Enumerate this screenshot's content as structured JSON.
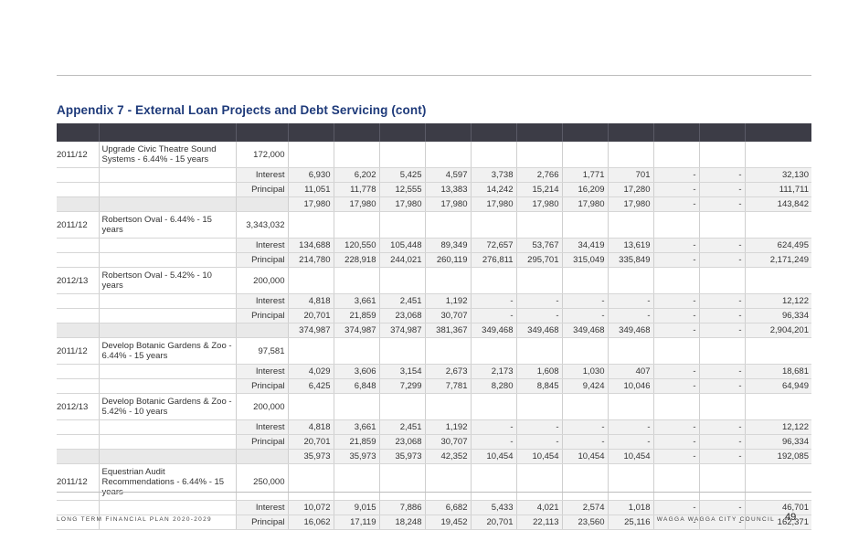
{
  "title": "Appendix 7 - External Loan Projects and Debt Servicing (cont)",
  "footer": {
    "left": "LONG TERM FINANCIAL PLAN 2020-2029",
    "right": "WAGGA WAGGA CITY COUNCIL",
    "page_number": "49"
  },
  "rows": [
    {
      "type": "loan",
      "year": "2011/12",
      "description": "Upgrade Civic Theatre Sound Systems - 6.44% - 15 years",
      "amount": "172,000"
    },
    {
      "type": "detail",
      "label": "Interest",
      "values": [
        "6,930",
        "6,202",
        "5,425",
        "4,597",
        "3,738",
        "2,766",
        "1,771",
        "701",
        "-",
        "-",
        "32,130"
      ]
    },
    {
      "type": "detail",
      "label": "Principal",
      "values": [
        "11,051",
        "11,778",
        "12,555",
        "13,383",
        "14,242",
        "15,214",
        "16,209",
        "17,280",
        "-",
        "-",
        "111,711"
      ]
    },
    {
      "type": "total",
      "values": [
        "17,980",
        "17,980",
        "17,980",
        "17,980",
        "17,980",
        "17,980",
        "17,980",
        "17,980",
        "-",
        "-",
        "143,842"
      ]
    },
    {
      "type": "loan",
      "year": "2011/12",
      "description": "Robertson Oval - 6.44% - 15 years",
      "amount": "3,343,032"
    },
    {
      "type": "detail",
      "label": "Interest",
      "values": [
        "134,688",
        "120,550",
        "105,448",
        "89,349",
        "72,657",
        "53,767",
        "34,419",
        "13,619",
        "-",
        "-",
        "624,495"
      ]
    },
    {
      "type": "detail",
      "label": "Principal",
      "values": [
        "214,780",
        "228,918",
        "244,021",
        "260,119",
        "276,811",
        "295,701",
        "315,049",
        "335,849",
        "-",
        "-",
        "2,171,249"
      ]
    },
    {
      "type": "loan",
      "year": "2012/13",
      "description": "Robertson Oval - 5.42% - 10 years",
      "amount": "200,000"
    },
    {
      "type": "detail",
      "label": "Interest",
      "values": [
        "4,818",
        "3,661",
        "2,451",
        "1,192",
        "-",
        "-",
        "-",
        "-",
        "-",
        "-",
        "12,122"
      ]
    },
    {
      "type": "detail",
      "label": "Principal",
      "values": [
        "20,701",
        "21,859",
        "23,068",
        "30,707",
        "-",
        "-",
        "-",
        "-",
        "-",
        "-",
        "96,334"
      ]
    },
    {
      "type": "total",
      "values": [
        "374,987",
        "374,987",
        "374,987",
        "381,367",
        "349,468",
        "349,468",
        "349,468",
        "349,468",
        "-",
        "-",
        "2,904,201"
      ]
    },
    {
      "type": "loan",
      "year": "2011/12",
      "description": "Develop Botanic Gardens & Zoo - 6.44% - 15 years",
      "amount": "97,581"
    },
    {
      "type": "detail",
      "label": "Interest",
      "values": [
        "4,029",
        "3,606",
        "3,154",
        "2,673",
        "2,173",
        "1,608",
        "1,030",
        "407",
        "-",
        "-",
        "18,681"
      ]
    },
    {
      "type": "detail",
      "label": "Principal",
      "values": [
        "6,425",
        "6,848",
        "7,299",
        "7,781",
        "8,280",
        "8,845",
        "9,424",
        "10,046",
        "-",
        "-",
        "64,949"
      ]
    },
    {
      "type": "loan",
      "year": "2012/13",
      "description": "Develop Botanic Gardens & Zoo - 5.42% - 10 years",
      "amount": "200,000"
    },
    {
      "type": "detail",
      "label": "Interest",
      "values": [
        "4,818",
        "3,661",
        "2,451",
        "1,192",
        "-",
        "-",
        "-",
        "-",
        "-",
        "-",
        "12,122"
      ]
    },
    {
      "type": "detail",
      "label": "Principal",
      "values": [
        "20,701",
        "21,859",
        "23,068",
        "30,707",
        "-",
        "-",
        "-",
        "-",
        "-",
        "-",
        "96,334"
      ]
    },
    {
      "type": "total",
      "values": [
        "35,973",
        "35,973",
        "35,973",
        "42,352",
        "10,454",
        "10,454",
        "10,454",
        "10,454",
        "-",
        "-",
        "192,085"
      ]
    },
    {
      "type": "loan",
      "tall": true,
      "year": "2011/12",
      "description": "Equestrian Audit Recommendations - 6.44% - 15 years",
      "amount": "250,000"
    },
    {
      "type": "detail",
      "label": "Interest",
      "values": [
        "10,072",
        "9,015",
        "7,886",
        "6,682",
        "5,433",
        "4,021",
        "2,574",
        "1,018",
        "-",
        "-",
        "46,701"
      ]
    },
    {
      "type": "detail",
      "label": "Principal",
      "values": [
        "16,062",
        "17,119",
        "18,248",
        "19,452",
        "20,701",
        "22,113",
        "23,560",
        "25,116",
        "-",
        "-",
        "162,371"
      ]
    }
  ]
}
